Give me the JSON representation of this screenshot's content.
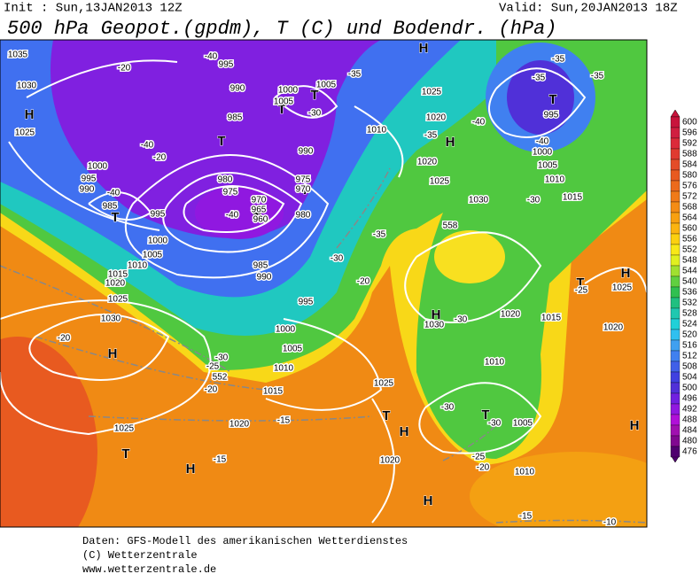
{
  "header": {
    "init": "Init : Sun,13JAN2013 12Z",
    "valid": "Valid: Sun,20JAN2013 18Z",
    "title": "500 hPa Geopot.(gpdm), T (C) und Bodendr. (hPa)"
  },
  "footer": [
    "Daten: GFS-Modell des amerikanischen Wetterdienstes",
    "(C) Wetterzentrale",
    "www.wetterzentrale.de"
  ],
  "colorbar": {
    "levels": [
      600,
      596,
      592,
      588,
      584,
      580,
      576,
      572,
      568,
      564,
      560,
      556,
      552,
      548,
      544,
      540,
      536,
      532,
      528,
      524,
      520,
      516,
      512,
      508,
      504,
      500,
      496,
      492,
      488,
      484,
      480,
      476
    ],
    "colors": [
      "#c8143c",
      "#d01e40",
      "#dc2a3a",
      "#e03a30",
      "#e44c28",
      "#e85a20",
      "#ec6a1c",
      "#f07a18",
      "#f48c14",
      "#f8a010",
      "#fcb410",
      "#fcd010",
      "#f8e818",
      "#e0f020",
      "#a0e030",
      "#60d040",
      "#30c050",
      "#20c080",
      "#20c8b0",
      "#20d0d8",
      "#30c0f0",
      "#40a0f0",
      "#4080f0",
      "#4060e8",
      "#4040e0",
      "#5030d8",
      "#7020e0",
      "#9018e0",
      "#b010d8",
      "#a010b0",
      "#800890",
      "#500070"
    ]
  },
  "pressure_centers": [
    "H",
    "H",
    "H",
    "T",
    "T",
    "T",
    "T",
    "T",
    "T",
    "T",
    "H",
    "T",
    "H",
    "T",
    "H",
    "H",
    "T",
    "H",
    "T",
    "H",
    "H"
  ],
  "isoline_labels": [
    "1035",
    "1030",
    "1025",
    "-20",
    "-40",
    "995",
    "990",
    "1000",
    "1005",
    "1005",
    "-30",
    "985",
    "-35",
    "1025",
    "1020",
    "1010",
    "-35",
    "-40",
    "-35",
    "-35",
    "995",
    "-35",
    "-40",
    "1000",
    "1005",
    "1010",
    "1015",
    "-30",
    "1020",
    "1025",
    "1030",
    "-40",
    "-20",
    "1000",
    "995",
    "990",
    "-40",
    "985",
    "995",
    "1000",
    "1005",
    "1010",
    "1015",
    "1020",
    "1025",
    "1030",
    "-20",
    "980",
    "975",
    "970",
    "965",
    "-40",
    "960",
    "990",
    "975",
    "970",
    "980",
    "985",
    "990",
    "995",
    "1000",
    "1005",
    "1010",
    "1015",
    "-30",
    "-25",
    "552",
    "-20",
    "1025",
    "-15",
    "1020",
    "-15",
    "1025",
    "1020",
    "-35",
    "-30",
    "-20",
    "1030",
    "-30",
    "1020",
    "1015",
    "-25",
    "1025",
    "1020",
    "1010",
    "-30",
    "-30",
    "1005",
    "-25",
    "-20",
    "1010",
    "-15",
    "-10",
    "558"
  ]
}
